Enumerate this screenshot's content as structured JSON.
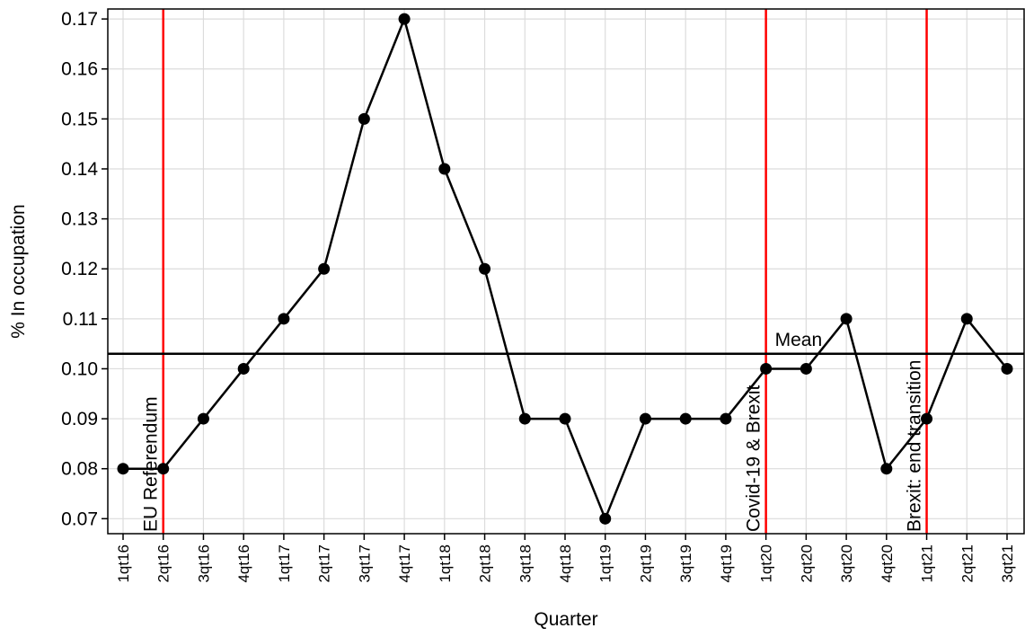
{
  "chart_data": {
    "type": "line",
    "xlabel": "Quarter",
    "ylabel": "% In occupation",
    "categories": [
      "1qt16",
      "2qt16",
      "3qt16",
      "4qt16",
      "1qt17",
      "2qt17",
      "3qt17",
      "4qt17",
      "1qt18",
      "2qt18",
      "3qt18",
      "4qt18",
      "1qt19",
      "2qt19",
      "3qt19",
      "4qt19",
      "1qt20",
      "2qt20",
      "3qt20",
      "4qt20",
      "1qt21",
      "2qt21",
      "3qt21"
    ],
    "series": [
      {
        "values": [
          0.08,
          0.08,
          0.09,
          0.1,
          0.11,
          0.12,
          0.15,
          0.17,
          0.14,
          0.12,
          0.09,
          0.09,
          0.07,
          0.09,
          0.09,
          0.09,
          0.1,
          0.1,
          0.11,
          0.08,
          0.09,
          0.11,
          0.1
        ],
        "color": "#000000"
      }
    ],
    "yticks": [
      "0.07",
      "0.08",
      "0.09",
      "0.10",
      "0.11",
      "0.12",
      "0.13",
      "0.14",
      "0.15",
      "0.16",
      "0.17"
    ],
    "ylim": [
      0.067,
      0.172
    ],
    "grid": true,
    "mean_line": {
      "label": "Mean",
      "value": 0.103,
      "color": "#000000"
    },
    "event_lines": [
      {
        "category": "2qt16",
        "label": "EU Referendum",
        "color": "#ff0000"
      },
      {
        "category": "1qt20",
        "label": "Covid-19 & Brexit",
        "color": "#ff0000"
      },
      {
        "category": "1qt21",
        "label": "Brexit: end transition",
        "color": "#ff0000"
      }
    ]
  }
}
